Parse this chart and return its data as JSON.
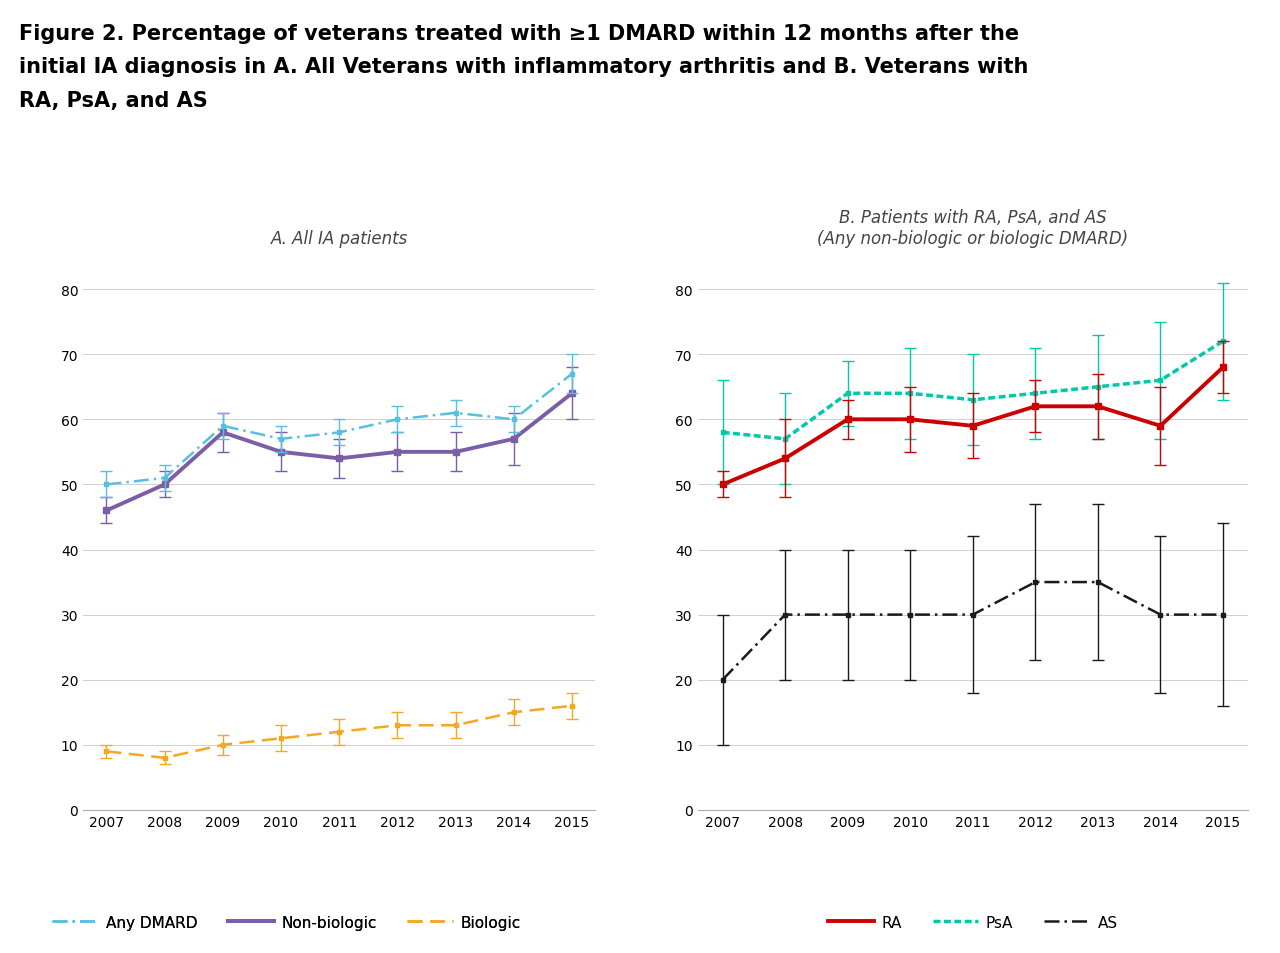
{
  "years": [
    2007,
    2008,
    2009,
    2010,
    2011,
    2012,
    2013,
    2014,
    2015
  ],
  "panel_A_title": "A. All IA patients",
  "panel_B_title": "B. Patients with RA, PsA, and AS\n(Any non-biologic or biologic DMARD)",
  "fig_title_line1": "Figure 2. Percentage of veterans treated with ≥1 DMARD within 12 months after the",
  "fig_title_line2": "initial IA diagnosis in A. All Veterans with inflammatory arthritis and B. Veterans with",
  "fig_title_line3": "RA, PsA, and AS",
  "any_dmard_y": [
    50,
    51,
    59,
    57,
    58,
    60,
    61,
    60,
    67
  ],
  "any_dmard_err": [
    2,
    2,
    2,
    2,
    2,
    2,
    2,
    2,
    3
  ],
  "nonbio_y": [
    46,
    50,
    58,
    55,
    54,
    55,
    55,
    57,
    64
  ],
  "nonbio_err": [
    2,
    2,
    3,
    3,
    3,
    3,
    3,
    4,
    4
  ],
  "biologic_y": [
    9,
    8,
    10,
    11,
    12,
    13,
    13,
    15,
    16
  ],
  "biologic_err": [
    1,
    1,
    1.5,
    2,
    2,
    2,
    2,
    2,
    2
  ],
  "RA_y": [
    50,
    54,
    60,
    60,
    59,
    62,
    62,
    59,
    68
  ],
  "RA_err": [
    2,
    6,
    3,
    5,
    5,
    4,
    5,
    6,
    4
  ],
  "PsA_y": [
    58,
    57,
    64,
    64,
    63,
    64,
    65,
    66,
    72
  ],
  "PsA_err": [
    8,
    7,
    5,
    7,
    7,
    7,
    8,
    9,
    9
  ],
  "AS_y": [
    20,
    30,
    30,
    30,
    30,
    35,
    35,
    30,
    30
  ],
  "AS_err": [
    10,
    10,
    10,
    10,
    12,
    12,
    12,
    12,
    14
  ],
  "color_any_dmard": "#56C0E0",
  "color_nonbio": "#7B5EA7",
  "color_biologic": "#F5A623",
  "color_RA": "#CC0000",
  "color_PsA": "#00C9A7",
  "color_AS": "#1A1A1A",
  "ylim": [
    0,
    85
  ],
  "yticks": [
    0,
    10,
    20,
    30,
    40,
    50,
    60,
    70,
    80
  ],
  "title_fontsize": 15,
  "axis_title_fontsize": 12,
  "tick_fontsize": 10,
  "legend_fontsize": 11
}
